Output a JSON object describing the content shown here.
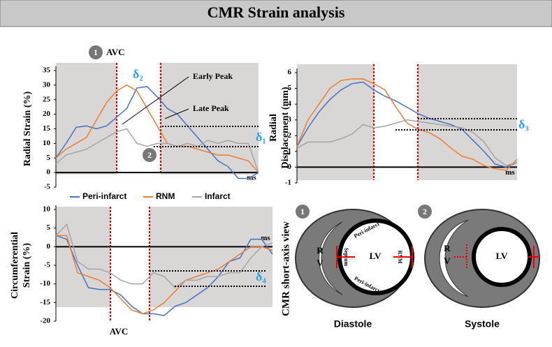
{
  "title": "CMR Strain analysis",
  "chart_data": [
    {
      "type": "line",
      "ylabel": "Radial Strain (%)",
      "xlabel": "ms",
      "ylim": [
        -5,
        35
      ],
      "yticks": [
        -5,
        0,
        5,
        10,
        15,
        20,
        25,
        30,
        35
      ],
      "categories": [
        null,
        null,
        null,
        null,
        null,
        null,
        null,
        null,
        null,
        null,
        null,
        null,
        null,
        null,
        null,
        null,
        null,
        null,
        null,
        null,
        null
      ],
      "series": [
        {
          "name": "Peri-infarct",
          "color": "#4472c4",
          "values": [
            5,
            10,
            15.5,
            16,
            15,
            16,
            19,
            22,
            29,
            29.5,
            26,
            22,
            20,
            16,
            12,
            8,
            4,
            2,
            -2,
            -2,
            0
          ]
        },
        {
          "name": "RNM",
          "color": "#ed7d31",
          "values": [
            5,
            8,
            10,
            12,
            18,
            24,
            28,
            30,
            28,
            22,
            16,
            10,
            9,
            9,
            8,
            7,
            6,
            6,
            5,
            4,
            0
          ]
        },
        {
          "name": "Infarct",
          "color": "#a5a5a5",
          "values": [
            3,
            6,
            7,
            8,
            10,
            12,
            14,
            15,
            10,
            9,
            10,
            10,
            9,
            10,
            9,
            11,
            10,
            11,
            10,
            10,
            0
          ]
        }
      ],
      "annotations": [
        "AVC",
        "δ₂",
        "Early Peak",
        "Late Peak",
        "δ₁",
        "1",
        "2"
      ]
    },
    {
      "type": "line",
      "ylabel": [
        "Radial",
        "Displacement (mm)"
      ],
      "xlabel": "ms",
      "ylim": [
        -1,
        6
      ],
      "yticks": [
        -1,
        0,
        1,
        2,
        3,
        4,
        5,
        6
      ],
      "categories": [
        null,
        null,
        null,
        null,
        null,
        null,
        null,
        null,
        null,
        null,
        null,
        null,
        null,
        null,
        null,
        null,
        null,
        null,
        null,
        null,
        null
      ],
      "series": [
        {
          "color": "#4472c4",
          "values": [
            1.3,
            2.5,
            3.5,
            4.3,
            4.9,
            5.3,
            5.4,
            4.9,
            4.5,
            4.2,
            3.8,
            3.4,
            3.1,
            2.9,
            2.7,
            2.4,
            1.7,
            1,
            0.2,
            0,
            0.3
          ]
        },
        {
          "color": "#ed7d31",
          "values": [
            1.3,
            3,
            4,
            5,
            5.5,
            5.6,
            5.6,
            5.3,
            4.9,
            3.8,
            2.8,
            2.4,
            2.2,
            1.8,
            1.2,
            0.7,
            0.5,
            0.1,
            -0.1,
            -0.2,
            0.5
          ]
        },
        {
          "color": "#a5a5a5",
          "values": [
            1.2,
            1.6,
            1.6,
            1.6,
            1.8,
            2.1,
            2.7,
            2.5,
            2.6,
            2.8,
            3,
            2.9,
            2.8,
            2.7,
            2.6,
            2.5,
            2.2,
            1.6,
            0.6,
            0.1,
            0.3
          ]
        }
      ],
      "annotations": [
        "δ₃"
      ]
    },
    {
      "type": "line",
      "ylabel": [
        "Circumferential",
        "Strain (%)"
      ],
      "xlabel": "ms",
      "ylim": [
        -20,
        10
      ],
      "yticks": [
        -20,
        -15,
        -10,
        -5,
        0,
        5,
        10
      ],
      "categories": [
        null,
        null,
        null,
        null,
        null,
        null,
        null,
        null,
        null,
        null,
        null,
        null,
        null,
        null,
        null,
        null,
        null,
        null,
        null,
        null,
        null
      ],
      "series": [
        {
          "color": "#4472c4",
          "values": [
            3,
            2,
            -5,
            -11,
            -11.5,
            -11.5,
            -13,
            -16,
            -18,
            -18,
            -18.5,
            -16,
            -15,
            -13,
            -11,
            -8,
            -4,
            -3,
            2,
            2,
            -2
          ]
        },
        {
          "color": "#ed7d31",
          "values": [
            3,
            3,
            -7,
            -8,
            -9,
            -11,
            -14,
            -17,
            -18,
            -17,
            -15,
            -12,
            -9,
            -8,
            -7,
            -6,
            -4,
            -2,
            0,
            0,
            -1
          ]
        },
        {
          "color": "#a5a5a5",
          "values": [
            3,
            6,
            -4,
            -6,
            -6,
            -7,
            -9,
            -10,
            -10,
            -7,
            -8,
            -11,
            -9,
            -9,
            -8,
            -8,
            -7,
            -7,
            -3,
            0,
            1
          ]
        }
      ],
      "annotations": [
        "δ₄",
        "AVC"
      ]
    }
  ],
  "diagram": {
    "title": "CMR short-axis view",
    "panels": [
      {
        "number": "1",
        "caption": "Diastole",
        "rv": [
          "R",
          "V"
        ],
        "lv": "LV",
        "labels": [
          "Peri-infarct",
          "Septum",
          "RNM",
          "Peri-infarct"
        ]
      },
      {
        "number": "2",
        "caption": "Systole",
        "rv": [
          "R",
          "V"
        ],
        "lv": "LV"
      }
    ]
  }
}
